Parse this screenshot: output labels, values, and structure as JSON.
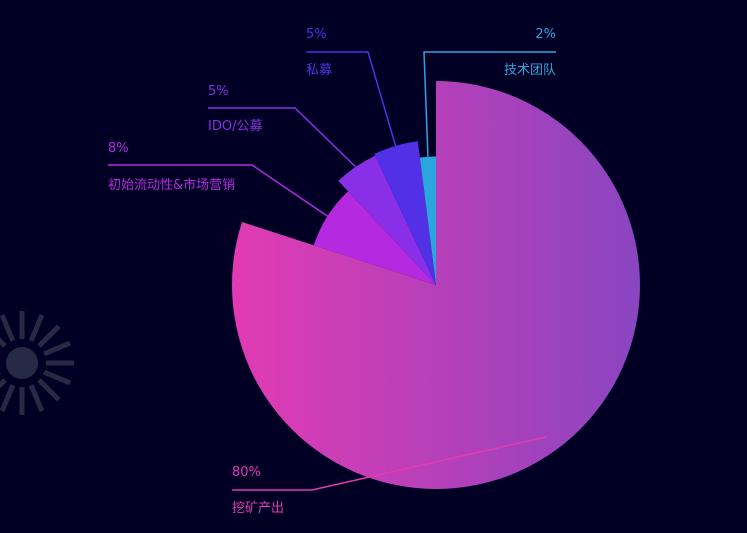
{
  "chart_data": {
    "type": "pie",
    "variant": "rose",
    "title": "",
    "start_angle_deg": 90,
    "direction": "clockwise",
    "legend": "none",
    "slices": [
      {
        "label": "挖矿产出",
        "value": 80,
        "percent": "80%",
        "color": "#e23bb3",
        "color_end": "#8a45c0",
        "radius_fraction": 1.0
      },
      {
        "label": "初始流动性&市场营销",
        "value": 8,
        "percent": "8%",
        "color": "#b52ae0",
        "radius_fraction": 0.63
      },
      {
        "label": "IDO/公募",
        "value": 5,
        "percent": "5%",
        "color": "#8a2fe8",
        "radius_fraction": 0.7
      },
      {
        "label": "私募",
        "value": 5,
        "percent": "5%",
        "color": "#5230e5",
        "radius_fraction": 0.71
      },
      {
        "label": "技术团队",
        "value": 2,
        "percent": "2%",
        "color": "#2aa5e0",
        "radius_fraction": 0.63
      }
    ]
  },
  "decor": {
    "left_icon": "sunburst-icon"
  }
}
